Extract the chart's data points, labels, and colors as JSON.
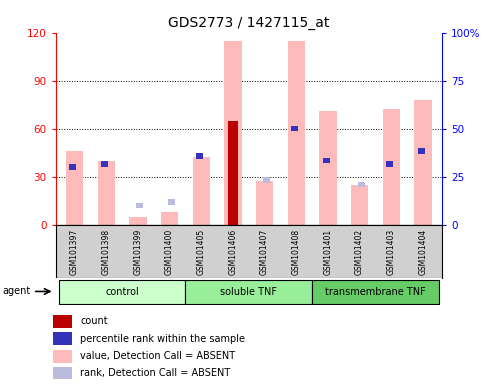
{
  "title": "GDS2773 / 1427115_at",
  "samples": [
    "GSM101397",
    "GSM101398",
    "GSM101399",
    "GSM101400",
    "GSM101405",
    "GSM101406",
    "GSM101407",
    "GSM101408",
    "GSM101401",
    "GSM101402",
    "GSM101403",
    "GSM101404"
  ],
  "groups": [
    {
      "label": "control",
      "start": 0,
      "end": 4,
      "color": "#bbeebb"
    },
    {
      "label": "soluble TNF",
      "start": 4,
      "end": 8,
      "color": "#88dd88"
    },
    {
      "label": "transmembrane TNF",
      "start": 8,
      "end": 12,
      "color": "#55bb55"
    }
  ],
  "value_absent": [
    46,
    40,
    5,
    8,
    42,
    115,
    27,
    115,
    71,
    25,
    72,
    78
  ],
  "rank_absent": [
    null,
    null,
    12,
    14,
    null,
    null,
    28,
    null,
    null,
    25,
    null,
    null
  ],
  "count_val": [
    null,
    null,
    null,
    null,
    null,
    65,
    null,
    null,
    null,
    null,
    null,
    null
  ],
  "percentile_val": [
    36,
    38,
    null,
    null,
    43,
    50,
    null,
    60,
    40,
    null,
    38,
    46
  ],
  "ylim_left": [
    0,
    120
  ],
  "ylim_right": [
    0,
    100
  ],
  "yticks_left": [
    0,
    30,
    60,
    90,
    120
  ],
  "yticks_right": [
    0,
    25,
    50,
    75,
    100
  ],
  "yticklabels_right": [
    "0",
    "25",
    "50",
    "75",
    "100%"
  ],
  "value_color": "#ffbbbb",
  "rank_absent_color": "#bbbbdd",
  "count_color": "#bb0000",
  "percentile_color": "#3333bb",
  "legend": [
    {
      "color": "#bb0000",
      "label": "count"
    },
    {
      "color": "#3333bb",
      "label": "percentile rank within the sample"
    },
    {
      "color": "#ffbbbb",
      "label": "value, Detection Call = ABSENT"
    },
    {
      "color": "#bbbbdd",
      "label": "rank, Detection Call = ABSENT"
    }
  ]
}
